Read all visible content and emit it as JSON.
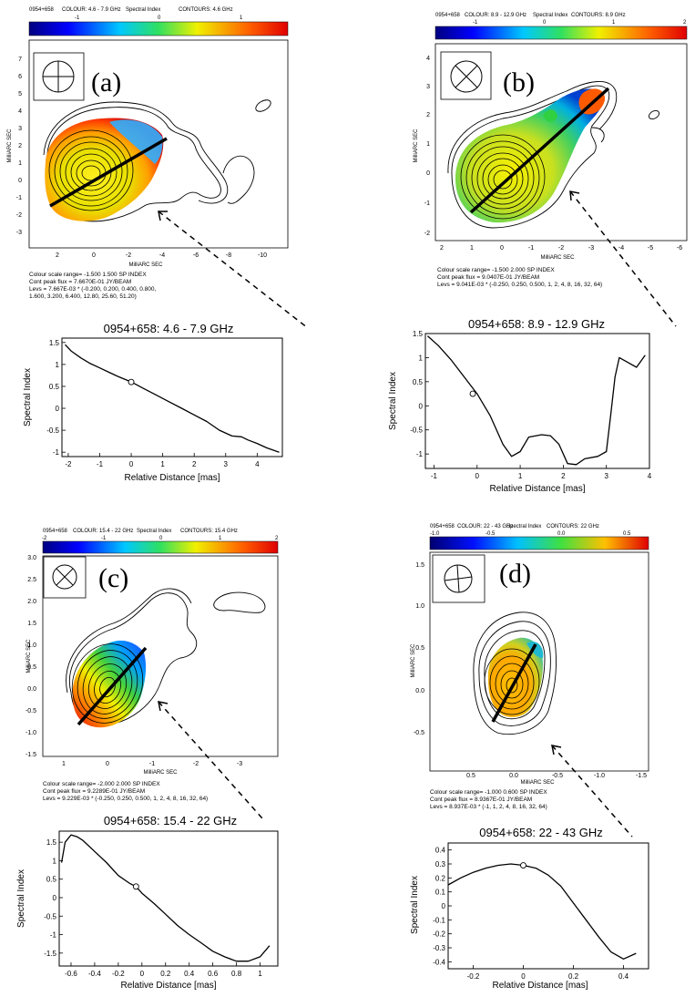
{
  "panels": [
    {
      "letter": "(a)",
      "map": {
        "header": [
          "0954+658",
          "COLOUR: 4.6 - 7.9 GHz",
          "Spectral Index",
          "CONTOURS: 4.6 GHz"
        ],
        "colorbar_ticks": [
          "-1",
          "0",
          "1"
        ],
        "ylabel": "MilliARC SEC",
        "xlabel": "MilliARC SEC",
        "xticks": [
          "2",
          "0",
          "-2",
          "-4",
          "-6",
          "-8",
          "-10"
        ],
        "yticks": [
          "7",
          "6",
          "5",
          "4",
          "3",
          "2",
          "1",
          "0",
          "-1",
          "-2",
          "-3"
        ],
        "info": [
          "Colour scale range= -1.500 1.500 SP INDEX",
          "Cont peak flux = 7.6670E-01 JY/BEAM",
          "Levs = 7.667E-03 * (-0.200, 0.200, 0.400, 0.800,",
          "1.600, 3.200, 6.400, 12.80, 25.60, 51.20)"
        ]
      },
      "profile": {
        "title": "0954+658: 4.6 - 7.9 GHz",
        "xlabel": "Relative Distance [mas]",
        "ylabel": "Spectral Index",
        "xticks": [
          "-2",
          "-1",
          "0",
          "1",
          "2",
          "3",
          "4"
        ],
        "yticks": [
          "1.5",
          "1",
          "0.5",
          "0",
          "-0.5",
          "-1"
        ]
      }
    },
    {
      "letter": "(b)",
      "map": {
        "header": [
          "0954+658",
          "COLOUR: 8.9 - 12.9 GHz",
          "Spectral Index",
          "CONTOURS: 8.9 GHz"
        ],
        "colorbar_ticks": [
          "-1",
          "0",
          "1",
          "2"
        ],
        "ylabel": "MilliARC SEC",
        "xlabel": "MilliARC SEC",
        "xticks": [
          "2",
          "1",
          "0",
          "-1",
          "-2",
          "-3",
          "-4",
          "-5",
          "-6"
        ],
        "yticks": [
          "4",
          "3",
          "2",
          "1",
          "0",
          "-1",
          "-2"
        ],
        "info": [
          "Colour scale range= -1.500 2.000 SP INDEX",
          "Cont peak flux = 9.0407E-01 JY/BEAM",
          "Levs = 9.041E-03 * (-0.250, 0.250, 0.500, 1, 2, 4, 8, 16, 32, 64)"
        ]
      },
      "profile": {
        "title": "0954+658: 8.9 - 12.9 GHz",
        "xlabel": "Relative Distance [mas]",
        "ylabel": "Spectral Index",
        "xticks": [
          "-1",
          "0",
          "1",
          "2",
          "3",
          "4"
        ],
        "yticks": [
          "1.5",
          "1",
          "0.5",
          "0",
          "-0.5",
          "-1"
        ]
      }
    },
    {
      "letter": "(c)",
      "map": {
        "header": [
          "0954+658",
          "COLOUR: 15.4 - 22 GHz",
          "Spectral Index",
          "CONTOURS: 15.4 GHz"
        ],
        "colorbar_ticks": [
          "-2",
          "-1",
          "0",
          "1",
          "2"
        ],
        "ylabel": "MilliARC SEC",
        "xlabel": "MilliARC SEC",
        "xticks": [
          "1",
          "0",
          "-1",
          "-2",
          "-3"
        ],
        "yticks": [
          "3.0",
          "2.5",
          "2.0",
          "1.5",
          "1.0",
          "0.5",
          "0.0",
          "-0.5",
          "-1.0",
          "-1.5"
        ],
        "info": [
          "Colour scale range= -2.000 2.000 SP INDEX",
          "Cont peak flux = 9.2289E-01 JY/BEAM",
          "Levs = 9.229E-03 * (-0.250, 0.250, 0.500, 1, 2, 4, 8, 16, 32, 64)"
        ]
      },
      "profile": {
        "title": "0954+658: 15.4 - 22 GHz",
        "xlabel": "Relative Distance [mas]",
        "ylabel": "Spectral Index",
        "xticks": [
          "-0.6",
          "-0.4",
          "-0.2",
          "0",
          "0.2",
          "0.4",
          "0.6",
          "0.8",
          "1"
        ],
        "yticks": [
          "1.5",
          "1",
          "0.5",
          "0",
          "-0.5",
          "-1",
          "-1.5"
        ]
      }
    },
    {
      "letter": "(d)",
      "map": {
        "header": [
          "0954+658",
          "COLOUR: 22 - 43 GHz",
          "Spectral Index",
          "CONTOURS: 22 GHz"
        ],
        "colorbar_ticks": [
          "-1.0",
          "-0.5",
          "0.0",
          "0.5"
        ],
        "ylabel": "MilliARC SEC",
        "xlabel": "MilliARC SEC",
        "xticks": [
          "0.5",
          "0.0",
          "-0.5",
          "-1.0",
          "-1.5"
        ],
        "yticks": [
          "1.5",
          "1.0",
          "0.5",
          "0.0",
          "-0.5"
        ],
        "info": [
          "Colour scale range= -1.000 0.600 SP INDEX",
          "Cont peak flux = 8.9367E-01 JY/BEAM",
          "Levs = 8.937E-03 * (-1, 1, 2, 4, 8, 16, 32, 64)"
        ]
      },
      "profile": {
        "title": "0954+658: 22 - 43 GHz",
        "xlabel": "Relative Distance [mas]",
        "ylabel": "Spectral Index",
        "xticks": [
          "-0.2",
          "0",
          "0.2",
          "0.4"
        ],
        "yticks": [
          "0.4",
          "0.3",
          "0.2",
          "0.1",
          "0",
          "-0.1",
          "-0.2",
          "-0.3",
          "-0.4"
        ]
      }
    }
  ],
  "chart_data": [
    {
      "type": "line",
      "title": "0954+658: 4.6 - 7.9 GHz",
      "xlabel": "Relative Distance [mas]",
      "ylabel": "Spectral Index",
      "xlim": [
        -2.2,
        4.8
      ],
      "ylim": [
        -1.1,
        1.6
      ],
      "x": [
        -2.1,
        -1.9,
        -1.6,
        -1.3,
        -1.0,
        -0.7,
        -0.4,
        0,
        0.4,
        0.8,
        1.2,
        1.6,
        2.0,
        2.4,
        2.8,
        3.2,
        3.5,
        3.7,
        4.0,
        4.3,
        4.7
      ],
      "y": [
        1.45,
        1.3,
        1.15,
        1.02,
        0.92,
        0.82,
        0.72,
        0.6,
        0.45,
        0.3,
        0.15,
        0.0,
        -0.15,
        -0.3,
        -0.5,
        -0.63,
        -0.65,
        -0.72,
        -0.8,
        -0.9,
        -1.0
      ],
      "marker": {
        "x": 0,
        "y": 0.6
      }
    },
    {
      "type": "line",
      "title": "0954+658: 8.9 - 12.9 GHz",
      "xlabel": "Relative Distance [mas]",
      "ylabel": "Spectral Index",
      "xlim": [
        -1.2,
        4.0
      ],
      "ylim": [
        -1.3,
        1.5
      ],
      "x": [
        -1.15,
        -0.9,
        -0.6,
        -0.3,
        0,
        0.3,
        0.6,
        0.8,
        1.0,
        1.2,
        1.5,
        1.7,
        1.9,
        2.1,
        2.3,
        2.5,
        2.8,
        3.0,
        3.1,
        3.2,
        3.3,
        3.5,
        3.7,
        3.9
      ],
      "y": [
        1.45,
        1.25,
        0.95,
        0.6,
        0.25,
        -0.2,
        -0.8,
        -1.05,
        -0.95,
        -0.65,
        -0.6,
        -0.62,
        -0.8,
        -1.2,
        -1.22,
        -1.1,
        -1.05,
        -0.95,
        -0.2,
        0.6,
        1.0,
        0.9,
        0.8,
        1.05
      ],
      "marker": {
        "x": -0.1,
        "y": 0.25
      }
    },
    {
      "type": "line",
      "title": "0954+658: 15.4 - 22 GHz",
      "xlabel": "Relative Distance [mas]",
      "ylabel": "Spectral Index",
      "xlim": [
        -0.7,
        1.15
      ],
      "ylim": [
        -1.85,
        1.8
      ],
      "x": [
        -0.68,
        -0.65,
        -0.6,
        -0.55,
        -0.5,
        -0.4,
        -0.3,
        -0.2,
        -0.1,
        -0.05,
        0,
        0.1,
        0.2,
        0.3,
        0.4,
        0.5,
        0.6,
        0.7,
        0.8,
        0.9,
        1.0,
        1.08
      ],
      "y": [
        0.95,
        1.5,
        1.7,
        1.65,
        1.55,
        1.25,
        0.95,
        0.6,
        0.38,
        0.3,
        0.12,
        -0.15,
        -0.45,
        -0.75,
        -1.0,
        -1.22,
        -1.45,
        -1.6,
        -1.72,
        -1.72,
        -1.6,
        -1.3
      ],
      "marker": {
        "x": -0.05,
        "y": 0.3
      }
    },
    {
      "type": "line",
      "title": "0954+658: 22 - 43 GHz",
      "xlabel": "Relative Distance [mas]",
      "ylabel": "Spectral Index",
      "xlim": [
        -0.3,
        0.5
      ],
      "ylim": [
        -0.45,
        0.45
      ],
      "x": [
        -0.3,
        -0.25,
        -0.2,
        -0.15,
        -0.1,
        -0.05,
        0,
        0.05,
        0.1,
        0.15,
        0.2,
        0.25,
        0.3,
        0.35,
        0.4,
        0.45
      ],
      "y": [
        0.15,
        0.2,
        0.24,
        0.27,
        0.29,
        0.3,
        0.29,
        0.27,
        0.22,
        0.14,
        0.02,
        -0.1,
        -0.22,
        -0.33,
        -0.38,
        -0.34
      ],
      "marker": {
        "x": 0,
        "y": 0.29
      }
    }
  ]
}
